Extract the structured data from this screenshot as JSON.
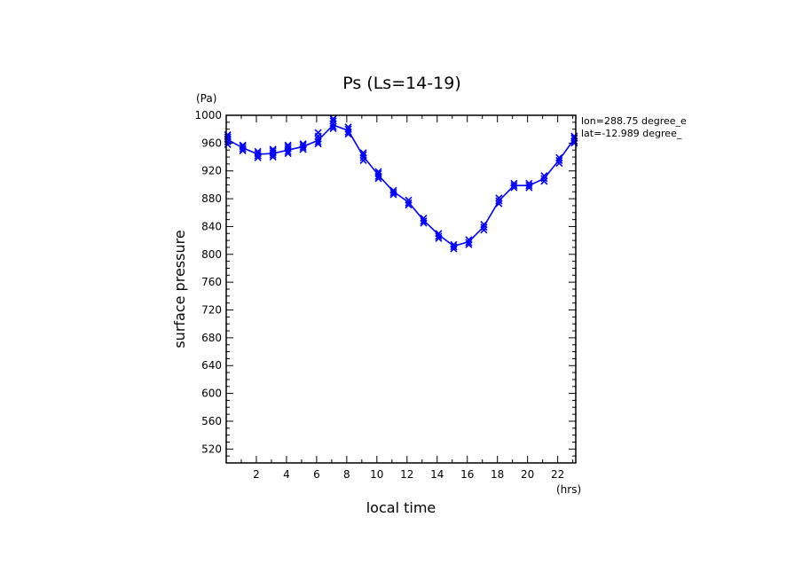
{
  "chart_data": {
    "type": "line",
    "title": "Ps (Ls=14-19)",
    "xlabel": "local time",
    "ylabel": "surface pressure",
    "x_units": "(hrs)",
    "y_units": "(Pa)",
    "annotations": [
      "lon=288.75 degree_e",
      "lat=-12.989 degree_"
    ],
    "xlim": [
      0,
      23.2
    ],
    "ylim": [
      500,
      1000
    ],
    "xticks": [
      2,
      4,
      6,
      8,
      10,
      12,
      14,
      16,
      18,
      20,
      22
    ],
    "yticks": [
      520,
      560,
      600,
      640,
      680,
      720,
      760,
      800,
      840,
      880,
      920,
      960,
      1000
    ],
    "grid": false,
    "series": [
      {
        "color": "#0000ff",
        "marker": "x",
        "x": [
          0.1,
          1.1,
          2.1,
          3.1,
          4.1,
          5.1,
          6.1,
          7.1,
          8.1,
          9.1,
          10.1,
          11.1,
          12.1,
          13.1,
          14.1,
          15.1,
          16.1,
          17.1,
          18.1,
          19.1,
          20.1,
          21.1,
          22.1,
          23.1
        ],
        "values": [
          965,
          953,
          944,
          945,
          950,
          955,
          964,
          986,
          978,
          941,
          914,
          890,
          875,
          849,
          828,
          812,
          818,
          840,
          877,
          899,
          899,
          909,
          936,
          966
        ],
        "scatter": [
          [
            0.1,
            [
              958,
              962,
              966,
              969,
              972
            ]
          ],
          [
            1.1,
            [
              949,
              952,
              955,
              957
            ]
          ],
          [
            2.1,
            [
              939,
              942,
              945,
              948
            ]
          ],
          [
            3.1,
            [
              940,
              943,
              946,
              949,
              951
            ]
          ],
          [
            4.1,
            [
              945,
              948,
              952,
              955,
              957
            ]
          ],
          [
            5.1,
            [
              951,
              954,
              957,
              959
            ]
          ],
          [
            6.1,
            [
              959,
              962,
              966,
              970,
              975
            ]
          ],
          [
            7.1,
            [
              981,
              984,
              988,
              992,
              995
            ]
          ],
          [
            8.1,
            [
              973,
              976,
              980,
              983
            ]
          ],
          [
            9.1,
            [
              935,
              939,
              943,
              946
            ]
          ],
          [
            10.1,
            [
              909,
              912,
              916,
              919
            ]
          ],
          [
            11.1,
            [
              886,
              889,
              892
            ]
          ],
          [
            12.1,
            [
              871,
              874,
              878
            ]
          ],
          [
            13.1,
            [
              845,
              848,
              852
            ]
          ],
          [
            14.1,
            [
              823,
              826,
              830
            ]
          ],
          [
            15.1,
            [
              808,
              811,
              814
            ]
          ],
          [
            16.1,
            [
              814,
              817,
              821
            ]
          ],
          [
            17.1,
            [
              835,
              839,
              843
            ]
          ],
          [
            18.1,
            [
              873,
              877,
              881
            ]
          ],
          [
            19.1,
            [
              896,
              899,
              902
            ]
          ],
          [
            20.1,
            [
              896,
              899,
              902
            ]
          ],
          [
            21.1,
            [
              905,
              909,
              913
            ]
          ],
          [
            22.1,
            [
              931,
              935,
              939
            ]
          ],
          [
            23.1,
            [
              960,
              963,
              967,
              970
            ]
          ]
        ]
      }
    ]
  }
}
